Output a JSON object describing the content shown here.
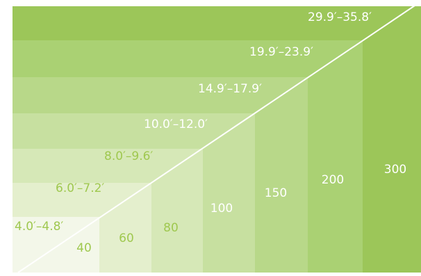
{
  "colors": {
    "band": [
      "#f3f7e9",
      "#e4efcd",
      "#d6e8b7",
      "#c7e0a0",
      "#b8d889",
      "#aad173",
      "#9cc659"
    ],
    "dark_text": "#9fc84f",
    "light_text": "#ffffff",
    "diagonal": "#ffffff"
  },
  "distance_ranges": [
    "4.0′–4.8′",
    "6.0′–7.2′",
    "8.0′–9.6′",
    "10.0′–12.0′",
    "14.9′–17.9′",
    "19.9′–23.9′",
    "29.9′–35.8′"
  ],
  "screen_sizes": [
    "40",
    "60",
    "80",
    "100",
    "150",
    "200",
    "300"
  ]
}
